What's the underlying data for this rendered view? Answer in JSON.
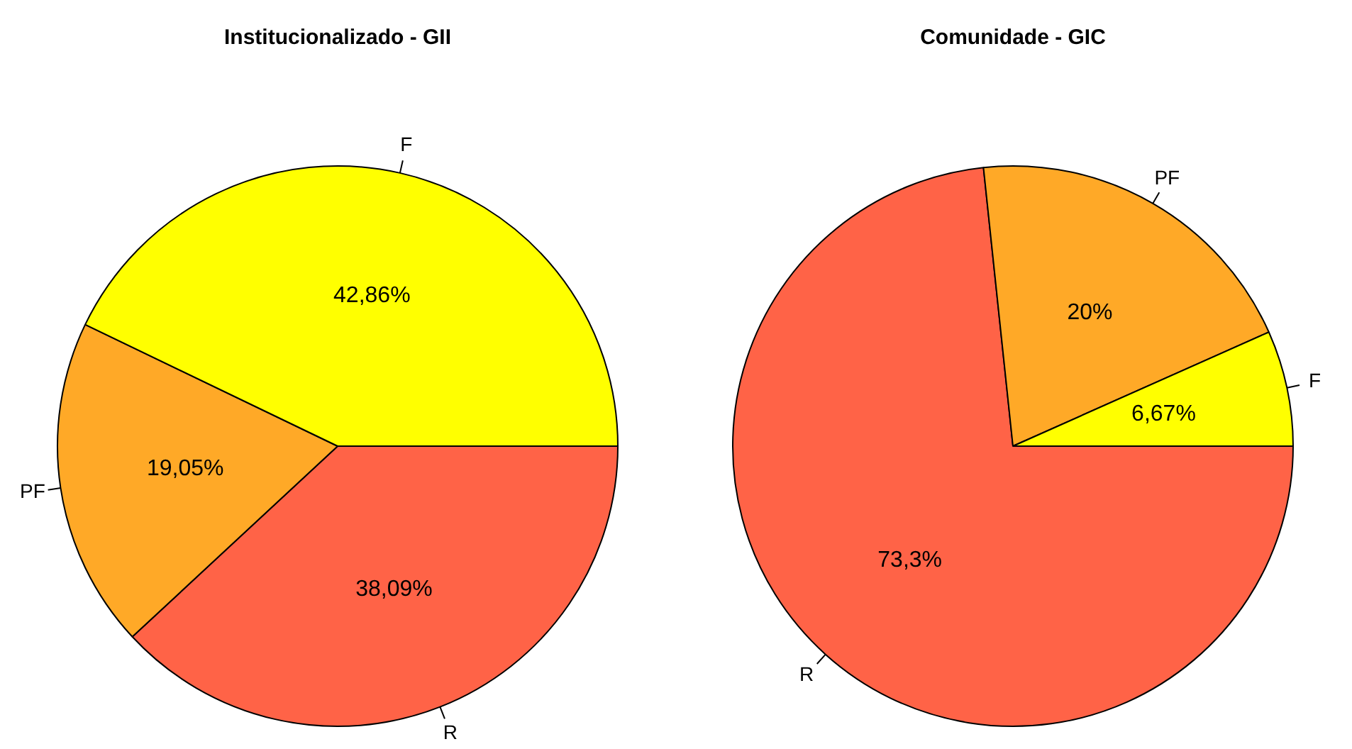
{
  "chart_data": [
    {
      "type": "pie",
      "title": "Institucionalizado - GII",
      "categories": [
        "F",
        "PF",
        "R"
      ],
      "values": [
        42.86,
        19.05,
        38.09
      ],
      "colors": [
        "#ffff00",
        "#ffa927",
        "#ff6347"
      ],
      "value_labels": [
        "42,86%",
        "19,05%",
        "38,09%"
      ],
      "legend": false
    },
    {
      "type": "pie",
      "title": "Comunidade - GIC",
      "categories": [
        "F",
        "PF",
        "R"
      ],
      "values": [
        6.67,
        20,
        73.3
      ],
      "colors": [
        "#ffff00",
        "#ffa927",
        "#ff6347"
      ],
      "value_labels": [
        "6,67%",
        "20%",
        "73,3%"
      ],
      "legend": false
    }
  ]
}
